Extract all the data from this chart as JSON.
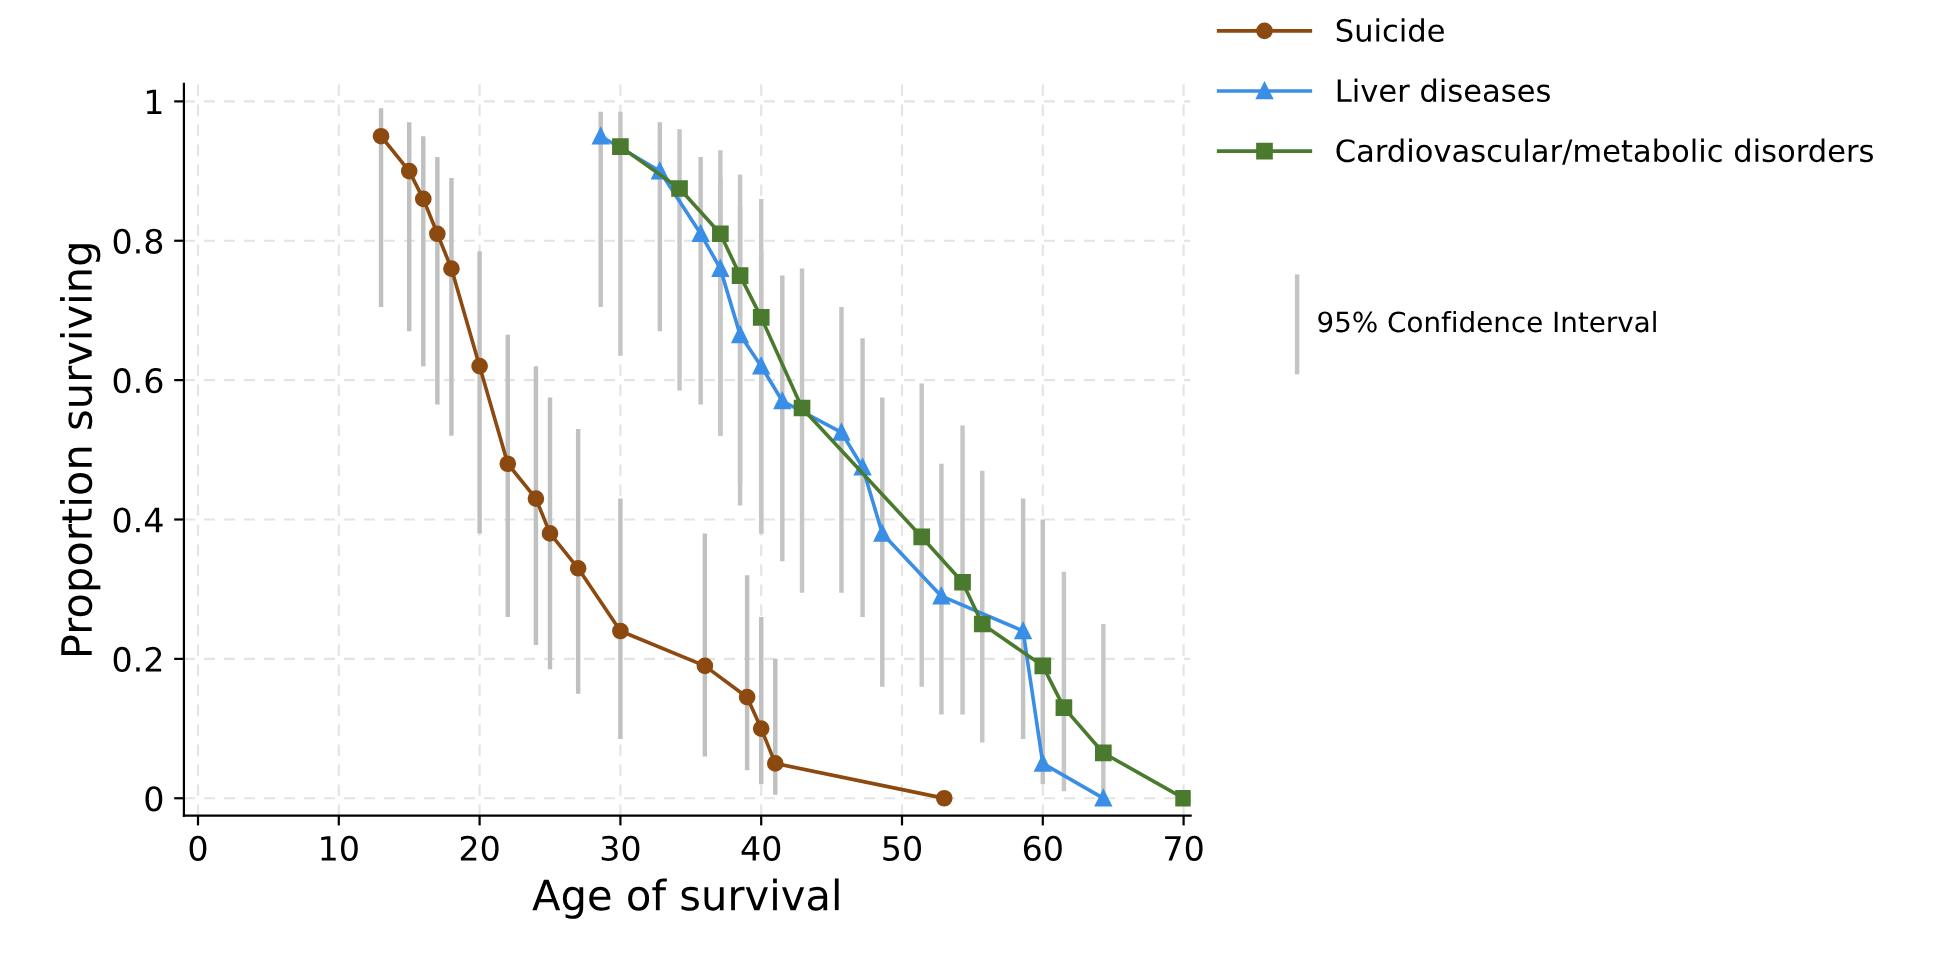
{
  "chart_data": {
    "type": "line",
    "xlabel": "Age of survival",
    "ylabel": "Proportion surviving",
    "xlim": [
      -1,
      70.5
    ],
    "xticks": [
      0,
      10,
      20,
      30,
      40,
      50,
      60,
      70
    ],
    "ylim": [
      -0.025,
      1.025
    ],
    "yticks": [
      0,
      0.2,
      0.4,
      0.6,
      0.8,
      1
    ],
    "grid": true,
    "legend": "top right",
    "annotations": [
      "95% Confidence Interval"
    ],
    "series": [
      {
        "name": "Suicide",
        "color": "#8c4a10",
        "marker": "circle",
        "x": [
          13,
          15,
          16,
          17,
          18,
          20,
          22,
          24,
          25,
          27,
          30,
          36,
          39,
          40,
          41,
          53
        ],
        "values": [
          0.95,
          0.9,
          0.86,
          0.81,
          0.76,
          0.62,
          0.48,
          0.43,
          0.38,
          0.33,
          0.24,
          0.19,
          0.145,
          0.1,
          0.05,
          0
        ],
        "errors": [
          [
            0.705,
            0.99
          ],
          [
            0.67,
            0.97
          ],
          [
            0.62,
            0.95
          ],
          [
            0.565,
            0.92
          ],
          [
            0.52,
            0.89
          ],
          [
            0.38,
            0.785
          ],
          [
            0.26,
            0.665
          ],
          [
            0.22,
            0.62
          ],
          [
            0.185,
            0.575
          ],
          [
            0.15,
            0.53
          ],
          [
            0.085,
            0.43
          ],
          [
            0.06,
            0.38
          ],
          [
            0.04,
            0.32
          ],
          [
            0.02,
            0.26
          ],
          [
            0.005,
            0.2
          ],
          null
        ]
      },
      {
        "name": "Liver diseases",
        "color": "#3a8ee6",
        "marker": "triangle",
        "x": [
          28.6,
          32.8,
          35.7,
          37.1,
          38.5,
          40,
          41.5,
          45.7,
          47.2,
          48.6,
          52.8,
          58.6,
          60,
          64.3
        ],
        "values": [
          0.95,
          0.9,
          0.81,
          0.76,
          0.665,
          0.62,
          0.57,
          0.525,
          0.475,
          0.38,
          0.29,
          0.24,
          0.05,
          0
        ],
        "errors": [
          [
            0.705,
            0.985
          ],
          [
            0.67,
            0.97
          ],
          [
            0.565,
            0.92
          ],
          [
            0.52,
            0.89
          ],
          [
            0.42,
            0.85
          ],
          [
            0.38,
            0.785
          ],
          [
            0.34,
            0.75
          ],
          [
            0.295,
            0.705
          ],
          [
            0.26,
            0.66
          ],
          [
            0.16,
            0.575
          ],
          [
            0.12,
            0.48
          ],
          [
            0.085,
            0.43
          ],
          [
            0.02,
            0.4
          ],
          null
        ]
      },
      {
        "name": "Cardiovascular/metabolic disorders",
        "color": "#4a7a2e",
        "marker": "square",
        "x": [
          30,
          34.2,
          37.1,
          38.5,
          40,
          42.9,
          51.4,
          54.3,
          55.7,
          60,
          61.5,
          64.3,
          70
        ],
        "values": [
          0.935,
          0.875,
          0.81,
          0.75,
          0.69,
          0.56,
          0.375,
          0.31,
          0.25,
          0.19,
          0.13,
          0.065,
          0
        ],
        "errors": [
          [
            0.635,
            0.985
          ],
          [
            0.585,
            0.96
          ],
          [
            0.52,
            0.93
          ],
          [
            0.45,
            0.895
          ],
          [
            0.38,
            0.86
          ],
          [
            0.295,
            0.76
          ],
          [
            0.16,
            0.595
          ],
          [
            0.12,
            0.535
          ],
          [
            0.08,
            0.47
          ],
          null,
          [
            0.01,
            0.325
          ],
          [
            0,
            0.25
          ],
          null
        ]
      }
    ]
  }
}
